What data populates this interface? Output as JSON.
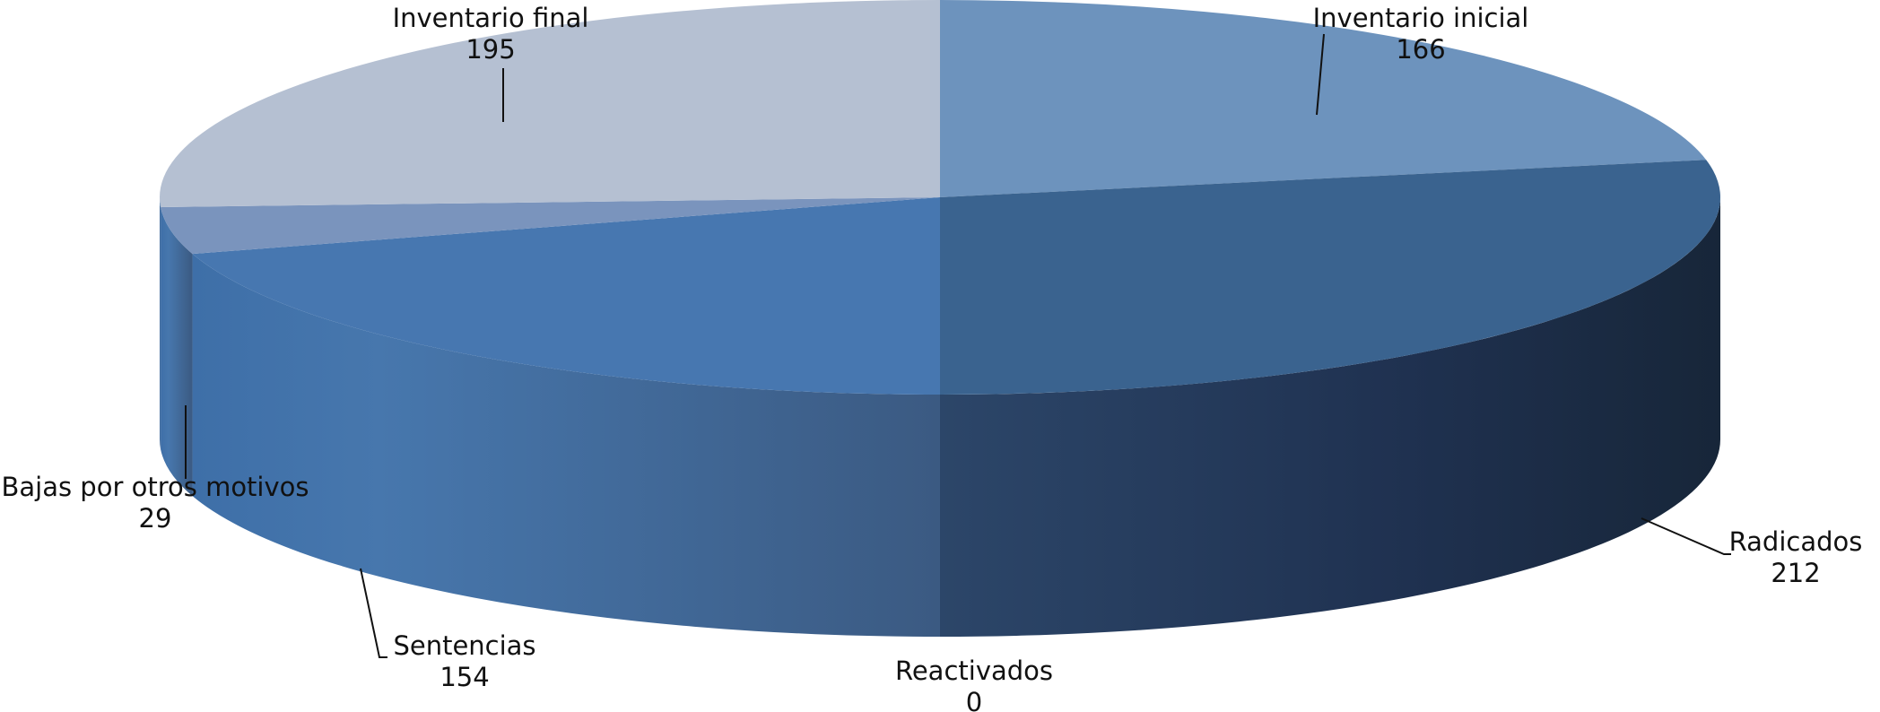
{
  "chart_data": {
    "type": "pie",
    "style": "3d",
    "categories": [
      "Inventario inicial",
      "Radicados",
      "Reactivados",
      "Sentencias",
      "Bajas por otros motivos",
      "Inventario final"
    ],
    "values": [
      166,
      212,
      0,
      154,
      29,
      195
    ],
    "value_labels": [
      "166",
      "212",
      "0",
      "154",
      "29",
      "195"
    ],
    "legend": "none",
    "colors": [
      "#6d93bd",
      "#3a638f",
      "#3a638f",
      "#4777b0",
      "#7a94bd",
      "#b5c0d2"
    ]
  }
}
